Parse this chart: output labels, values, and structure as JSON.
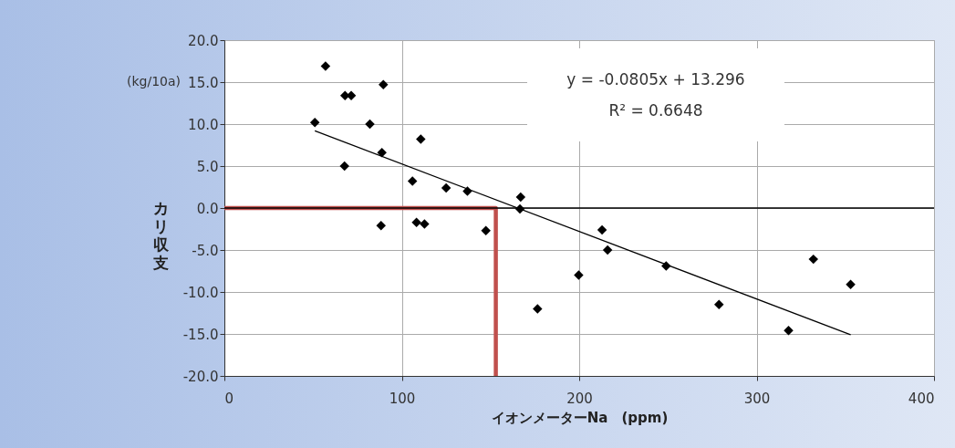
{
  "chart_data": {
    "type": "scatter",
    "xlabel": "イオンメーターNa　(ppm)",
    "ylabel": "カリ収支",
    "annotations": [
      "(kg/10a)",
      "y = -0.0805x + 13.296",
      "R² = 0.6648"
    ],
    "xlim": [
      0,
      400
    ],
    "xticks": [
      0,
      100,
      200,
      300,
      400
    ],
    "ylim": [
      -20,
      20
    ],
    "yticks": [
      {
        "value": -20,
        "label": "-20.0"
      },
      {
        "value": -15,
        "label": "-15.0"
      },
      {
        "value": -10,
        "label": "-10.0"
      },
      {
        "value": -5,
        "label": "-5.0"
      },
      {
        "value": 0,
        "label": "0.0"
      },
      {
        "value": 5,
        "label": "5.0"
      },
      {
        "value": 10,
        "label": "10.0"
      },
      {
        "value": 15,
        "label": "15.0"
      },
      {
        "value": 20,
        "label": "20.0"
      }
    ],
    "grid": true,
    "marker": "diamond",
    "ref_lines": [
      {
        "axis": "y",
        "value": 0,
        "color": "#000000"
      }
    ],
    "series": [
      {
        "type": "scatter",
        "color": "#000000",
        "x": [
          51,
          57,
          68,
          71.5,
          89.6,
          82,
          88.8,
          67.7,
          110.7,
          106,
          125,
          137,
          167,
          166.6,
          88.3,
          108.3,
          112.8,
          147.4,
          199.7,
          176.5,
          212.9,
          216,
          249,
          278.8,
          318,
          332,
          353
        ],
        "values": [
          10.2,
          16.9,
          13.4,
          13.4,
          14.7,
          10.0,
          6.6,
          5.0,
          8.2,
          3.2,
          2.4,
          2.0,
          1.3,
          -0.1,
          -2.1,
          -1.7,
          -1.9,
          -2.7,
          -8.0,
          -12.0,
          -2.6,
          -5.0,
          -6.9,
          -11.5,
          -14.6,
          -6.1,
          -9.1
        ]
      },
      {
        "type": "line",
        "color": "#000000",
        "marker": "none",
        "x": [
          51,
          353
        ],
        "values": [
          9.2,
          -15.1
        ]
      },
      {
        "type": "line",
        "color": "#c0504d",
        "marker": "none",
        "x": [
          0,
          153,
          153
        ],
        "values": [
          0,
          0,
          -20
        ]
      }
    ]
  }
}
